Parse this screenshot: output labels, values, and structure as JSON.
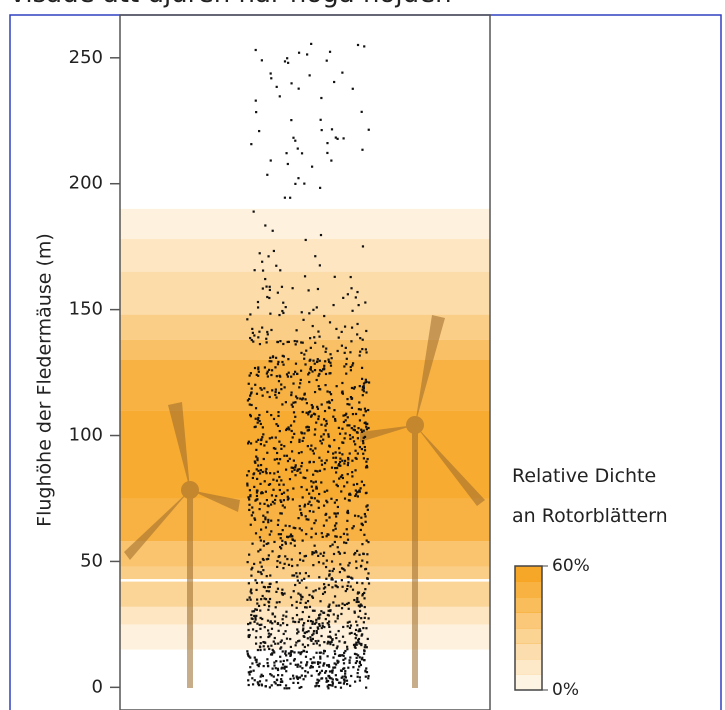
{
  "caption": "visade att djuren når höga höjden",
  "chart_data": {
    "type": "density-scatter",
    "y_label": "Flughöhe der Fledermäuse (m)",
    "ylim": [
      -9,
      267
    ],
    "yticks": [
      0,
      50,
      100,
      150,
      200,
      250
    ],
    "band_color": "#f7a21b",
    "density_bands": [
      {
        "from": 15,
        "to": 25,
        "density": 10
      },
      {
        "from": 25,
        "to": 32,
        "density": 18
      },
      {
        "from": 32,
        "to": 42,
        "density": 30
      },
      {
        "from": 43,
        "to": 48,
        "density": 35
      },
      {
        "from": 48,
        "to": 58,
        "density": 42
      },
      {
        "from": 58,
        "to": 75,
        "density": 55
      },
      {
        "from": 75,
        "to": 110,
        "density": 60
      },
      {
        "from": 110,
        "to": 130,
        "density": 55
      },
      {
        "from": 130,
        "to": 138,
        "density": 45
      },
      {
        "from": 138,
        "to": 148,
        "density": 35
      },
      {
        "from": 148,
        "to": 165,
        "density": 25
      },
      {
        "from": 165,
        "to": 178,
        "density": 18
      },
      {
        "from": 178,
        "to": 190,
        "density": 10
      }
    ],
    "point_bins": [
      0,
      10,
      20,
      30,
      40,
      50,
      60,
      70,
      80,
      90,
      100,
      110,
      120,
      130,
      140,
      150,
      160,
      170,
      180,
      190,
      200,
      210,
      220,
      230,
      240,
      250,
      256
    ],
    "point_counts": [
      190,
      170,
      150,
      110,
      90,
      80,
      90,
      100,
      100,
      100,
      100,
      90,
      90,
      60,
      30,
      25,
      10,
      6,
      4,
      3,
      8,
      12,
      8,
      6,
      10,
      8
    ],
    "legend": {
      "title_lines": [
        "Relative Dichte",
        "an Rotorblättern"
      ],
      "scale": [
        {
          "value": 60,
          "label": "60%"
        },
        {
          "value": 0,
          "label": "0%"
        }
      ]
    }
  }
}
